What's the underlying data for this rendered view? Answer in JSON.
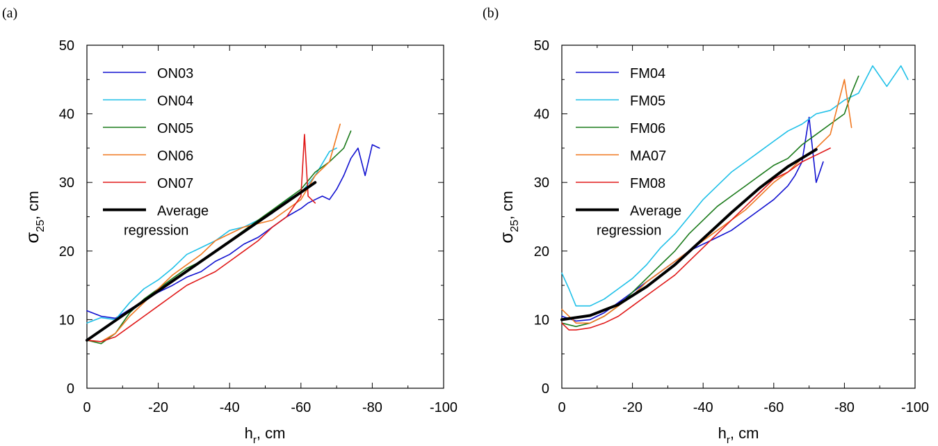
{
  "chart_data": [
    {
      "type": "line",
      "panel_label": "(a)",
      "xlabel_main": "h",
      "xlabel_sub": "r",
      "xlabel_tail": ", cm",
      "ylabel_main": "σ",
      "ylabel_sub": "25",
      "ylabel_tail": ", cm",
      "xlim": [
        0,
        -100
      ],
      "ylim": [
        0,
        50
      ],
      "xticks": [
        0,
        -20,
        -40,
        -60,
        -80,
        -100
      ],
      "xtick_labels": [
        "0",
        "-20",
        "-40",
        "-60",
        "-80",
        "-100"
      ],
      "yticks": [
        0,
        10,
        20,
        30,
        40,
        50
      ],
      "ytick_labels": [
        "0",
        "10",
        "20",
        "30",
        "40",
        "50"
      ],
      "grid": false,
      "legend_position": "top-left",
      "series": [
        {
          "name": "ON03",
          "color": "#1010d0",
          "x": [
            0,
            -4,
            -8,
            -12,
            -16,
            -20,
            -24,
            -28,
            -32,
            -36,
            -40,
            -44,
            -48,
            -52,
            -56,
            -60,
            -62,
            -64,
            -66,
            -68,
            -70,
            -72,
            -74,
            -76,
            -78,
            -80,
            -82
          ],
          "y": [
            11.3,
            10.5,
            10.2,
            11.5,
            12.8,
            14.0,
            15.0,
            16.2,
            17.0,
            18.5,
            19.5,
            21.0,
            22.0,
            23.5,
            25.0,
            26.2,
            27.0,
            27.5,
            28.0,
            27.5,
            29.0,
            31.0,
            33.5,
            35.0,
            31.0,
            35.5,
            35.0
          ]
        },
        {
          "name": "ON04",
          "color": "#1ec0e8",
          "x": [
            0,
            -4,
            -8,
            -12,
            -16,
            -20,
            -24,
            -28,
            -32,
            -36,
            -40,
            -44,
            -48,
            -52,
            -56,
            -60,
            -64,
            -68,
            -70
          ],
          "y": [
            9.5,
            10.3,
            10.0,
            12.5,
            14.5,
            15.8,
            17.5,
            19.5,
            20.5,
            21.5,
            23.0,
            23.5,
            24.5,
            25.5,
            27.5,
            28.5,
            31.0,
            34.5,
            35.0
          ]
        },
        {
          "name": "ON05",
          "color": "#1a7a1a",
          "x": [
            0,
            -4,
            -8,
            -12,
            -16,
            -20,
            -24,
            -28,
            -32,
            -36,
            -40,
            -44,
            -48,
            -52,
            -56,
            -60,
            -64,
            -68,
            -72,
            -74
          ],
          "y": [
            7.0,
            6.5,
            8.0,
            11.0,
            13.0,
            14.5,
            16.0,
            17.5,
            18.5,
            20.0,
            21.5,
            23.0,
            24.5,
            26.0,
            27.5,
            29.0,
            31.5,
            33.0,
            35.0,
            37.5
          ]
        },
        {
          "name": "ON06",
          "color": "#f07820",
          "x": [
            0,
            -4,
            -8,
            -12,
            -16,
            -20,
            -24,
            -28,
            -32,
            -36,
            -40,
            -44,
            -48,
            -52,
            -56,
            -60,
            -64,
            -68,
            -71
          ],
          "y": [
            7.0,
            6.8,
            8.0,
            10.5,
            12.5,
            14.5,
            16.5,
            18.0,
            19.5,
            21.5,
            22.5,
            23.5,
            24.0,
            24.5,
            26.0,
            27.5,
            31.0,
            33.0,
            38.5
          ]
        },
        {
          "name": "ON07",
          "color": "#e01818",
          "x": [
            0,
            -4,
            -8,
            -12,
            -16,
            -20,
            -24,
            -28,
            -32,
            -36,
            -40,
            -44,
            -48,
            -52,
            -56,
            -58,
            -60,
            -61,
            -62,
            -64
          ],
          "y": [
            7.0,
            6.8,
            7.5,
            9.0,
            10.5,
            12.0,
            13.5,
            15.0,
            16.0,
            17.0,
            18.5,
            20.0,
            21.5,
            23.5,
            25.0,
            26.5,
            28.0,
            37.0,
            28.0,
            27.0
          ]
        },
        {
          "name": "Average regression",
          "color": "#000000",
          "thick": true,
          "x": [
            0,
            -64
          ],
          "y": [
            7.0,
            30.0
          ]
        }
      ]
    },
    {
      "type": "line",
      "panel_label": "(b)",
      "xlabel_main": "h",
      "xlabel_sub": "r",
      "xlabel_tail": ", cm",
      "ylabel_main": "σ",
      "ylabel_sub": "25",
      "ylabel_tail": ", cm",
      "xlim": [
        0,
        -100
      ],
      "ylim": [
        0,
        50
      ],
      "xticks": [
        0,
        -20,
        -40,
        -60,
        -80,
        -100
      ],
      "xtick_labels": [
        "0",
        "-20",
        "-40",
        "-60",
        "-80",
        "-100"
      ],
      "yticks": [
        0,
        10,
        20,
        30,
        40,
        50
      ],
      "ytick_labels": [
        "0",
        "10",
        "20",
        "30",
        "40",
        "50"
      ],
      "grid": false,
      "legend_position": "top-left",
      "series": [
        {
          "name": "FM04",
          "color": "#1010d0",
          "x": [
            0,
            -4,
            -8,
            -12,
            -16,
            -20,
            -24,
            -28,
            -32,
            -36,
            -40,
            -44,
            -48,
            -52,
            -56,
            -60,
            -64,
            -66,
            -68,
            -70,
            -72,
            -74
          ],
          "y": [
            10.5,
            9.8,
            10.0,
            11.0,
            12.5,
            14.0,
            15.5,
            17.0,
            18.5,
            20.0,
            21.0,
            22.0,
            23.0,
            24.5,
            26.0,
            27.5,
            29.5,
            31.0,
            33.0,
            39.5,
            30.0,
            33.0
          ]
        },
        {
          "name": "FM05",
          "color": "#1ec0e8",
          "x": [
            0,
            -2,
            -4,
            -8,
            -12,
            -16,
            -20,
            -24,
            -28,
            -32,
            -36,
            -40,
            -44,
            -48,
            -52,
            -56,
            -60,
            -64,
            -68,
            -72,
            -76,
            -80,
            -84,
            -88,
            -92,
            -96,
            -98
          ],
          "y": [
            16.8,
            14.5,
            12.0,
            12.0,
            13.0,
            14.5,
            16.0,
            18.0,
            20.5,
            22.5,
            25.0,
            27.5,
            29.5,
            31.5,
            33.0,
            34.5,
            36.0,
            37.5,
            38.5,
            40.0,
            40.5,
            42.0,
            43.0,
            47.0,
            44.0,
            47.0,
            45.0
          ]
        },
        {
          "name": "FM06",
          "color": "#1a7a1a",
          "x": [
            0,
            -4,
            -8,
            -12,
            -16,
            -20,
            -24,
            -28,
            -32,
            -36,
            -40,
            -44,
            -48,
            -52,
            -56,
            -60,
            -64,
            -68,
            -72,
            -76,
            -80,
            -82,
            -84
          ],
          "y": [
            9.5,
            9.0,
            9.5,
            10.5,
            12.0,
            14.0,
            16.0,
            18.0,
            20.0,
            22.5,
            24.5,
            26.5,
            28.0,
            29.5,
            31.0,
            32.5,
            33.5,
            35.5,
            37.0,
            38.5,
            40.0,
            43.0,
            45.5
          ]
        },
        {
          "name": "MA07",
          "color": "#f07820",
          "x": [
            0,
            -4,
            -8,
            -12,
            -16,
            -20,
            -24,
            -28,
            -32,
            -36,
            -40,
            -44,
            -48,
            -52,
            -56,
            -60,
            -64,
            -68,
            -72,
            -76,
            -80,
            -82
          ],
          "y": [
            11.5,
            9.5,
            9.5,
            10.5,
            12.0,
            13.5,
            15.5,
            17.0,
            18.5,
            20.0,
            21.5,
            23.0,
            24.5,
            26.0,
            28.0,
            30.0,
            31.5,
            33.5,
            35.0,
            37.0,
            45.0,
            38.0
          ]
        },
        {
          "name": "FM08",
          "color": "#e01818",
          "x": [
            0,
            -2,
            -4,
            -8,
            -12,
            -16,
            -20,
            -24,
            -28,
            -32,
            -36,
            -40,
            -44,
            -48,
            -52,
            -56,
            -60,
            -64,
            -68,
            -72,
            -76
          ],
          "y": [
            9.5,
            8.5,
            8.5,
            8.8,
            9.5,
            10.5,
            12.0,
            13.5,
            15.0,
            16.5,
            18.5,
            20.5,
            22.5,
            24.5,
            26.5,
            28.5,
            30.5,
            31.5,
            33.0,
            34.0,
            35.0
          ]
        },
        {
          "name": "Average regression",
          "color": "#000000",
          "thick": true,
          "x": [
            0,
            -8,
            -16,
            -24,
            -32,
            -40,
            -48,
            -56,
            -64,
            -72
          ],
          "y": [
            10.0,
            10.6,
            12.2,
            14.8,
            18.0,
            21.8,
            25.6,
            29.2,
            32.3,
            34.8
          ]
        }
      ]
    }
  ]
}
